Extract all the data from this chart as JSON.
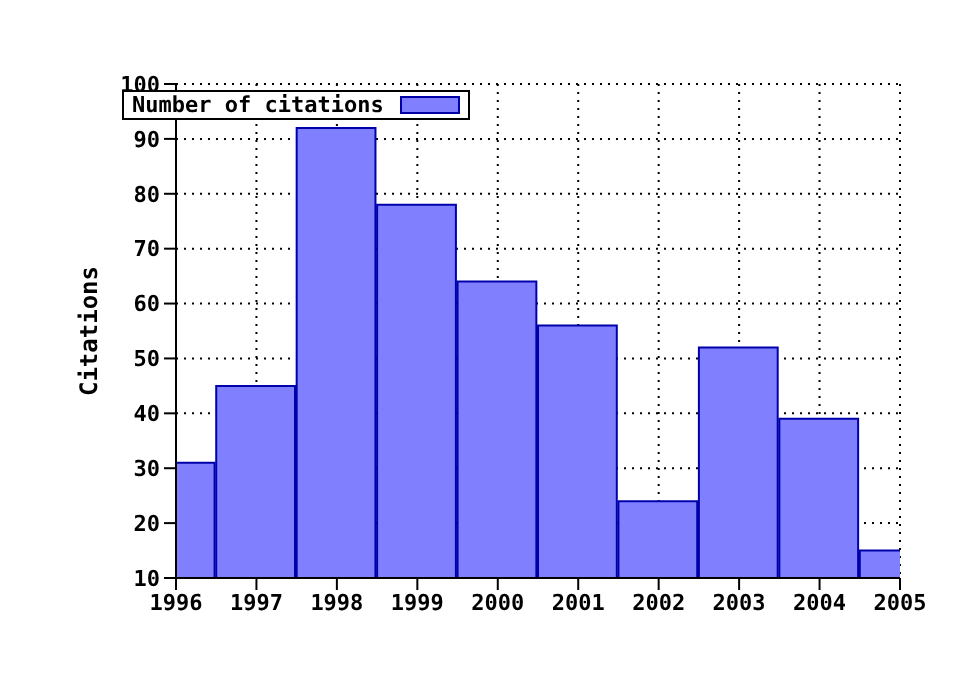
{
  "chart_data": {
    "type": "bar",
    "ylabel": "Citations",
    "x": [
      1996,
      1997,
      1998,
      1999,
      2000,
      2001,
      2002,
      2003,
      2004,
      2005
    ],
    "series": [
      {
        "name": "Number of citations",
        "color": "#8080ff",
        "values": [
          31,
          45,
          92,
          78,
          64,
          56,
          24,
          52,
          39,
          15
        ]
      }
    ],
    "xlim": [
      1996,
      2005
    ],
    "xticks": [
      1996,
      1997,
      1998,
      1999,
      2000,
      2001,
      2002,
      2003,
      2004,
      2005
    ],
    "ylim": [
      10,
      100
    ],
    "yticks": [
      10,
      20,
      30,
      40,
      50,
      60,
      70,
      80,
      90,
      100
    ],
    "grid": true,
    "legend": "top left"
  }
}
